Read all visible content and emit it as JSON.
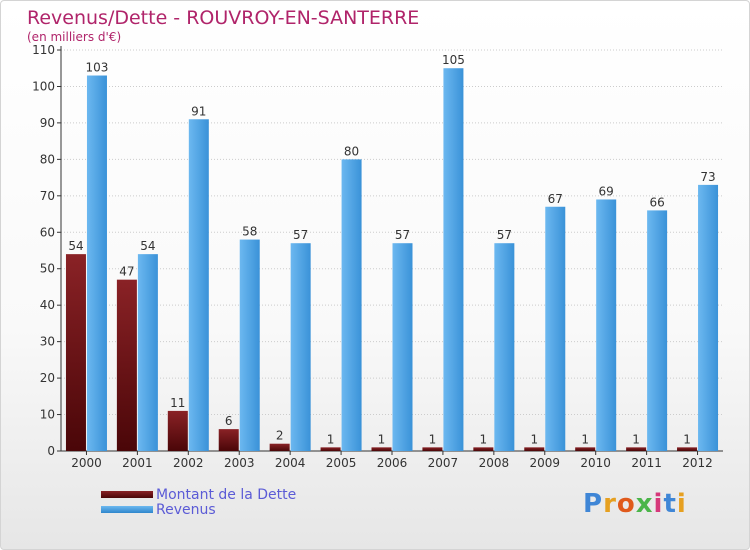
{
  "header": {
    "title": "Revenus/Dette - ROUVROY-EN-SANTERRE",
    "subtitle": "(en milliers d'€)"
  },
  "logo": {
    "text": "Proxiti"
  },
  "colors": {
    "title": "#b0246a",
    "debt": "#6b0f12",
    "revenue": "#4ea3e6",
    "legend_text": "#5b5bd6",
    "axis_text": "#333333",
    "grid": "#cccccc"
  },
  "chart_data": {
    "type": "bar",
    "categories": [
      "2000",
      "2001",
      "2002",
      "2003",
      "2004",
      "2005",
      "2006",
      "2007",
      "2008",
      "2009",
      "2010",
      "2011",
      "2012"
    ],
    "series": [
      {
        "name": "Montant de la Dette",
        "values": [
          54,
          47,
          11,
          6,
          2,
          1,
          1,
          1,
          1,
          1,
          1,
          1,
          1
        ]
      },
      {
        "name": "Revenus",
        "values": [
          103,
          54,
          91,
          58,
          57,
          80,
          57,
          105,
          57,
          67,
          69,
          66,
          73
        ]
      }
    ],
    "title": "Revenus/Dette - ROUVROY-EN-SANTERRE",
    "ylabel": "(en milliers d'€)",
    "ylim": [
      0,
      110
    ],
    "yticks": [
      0,
      10,
      20,
      30,
      40,
      50,
      60,
      70,
      80,
      90,
      100,
      110
    ],
    "grid": true,
    "legend": "bottom-left",
    "data_labels": true
  }
}
